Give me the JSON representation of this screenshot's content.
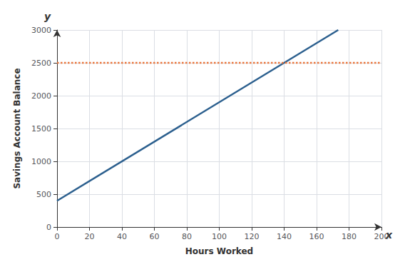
{
  "chart_data": {
    "type": "line",
    "xlabel": "Hours Worked",
    "ylabel": "Savings Account Balance",
    "annotations": [
      "x",
      "y"
    ],
    "xlim": [
      0,
      200
    ],
    "ylim": [
      0,
      3000
    ],
    "xticks": [
      0,
      20,
      40,
      60,
      80,
      100,
      120,
      140,
      160,
      180,
      200
    ],
    "yticks": [
      0,
      500,
      1000,
      1500,
      2000,
      2500,
      3000
    ],
    "grid": true,
    "series": [
      {
        "x": [
          0,
          173.33
        ],
        "values": [
          400,
          2999.95
        ],
        "color": "#2b5f8e",
        "line_style": "solid"
      },
      {
        "x": [
          0,
          200
        ],
        "values": [
          2500,
          2500
        ],
        "color": "#e8743b",
        "line_style": "dotted"
      }
    ]
  }
}
